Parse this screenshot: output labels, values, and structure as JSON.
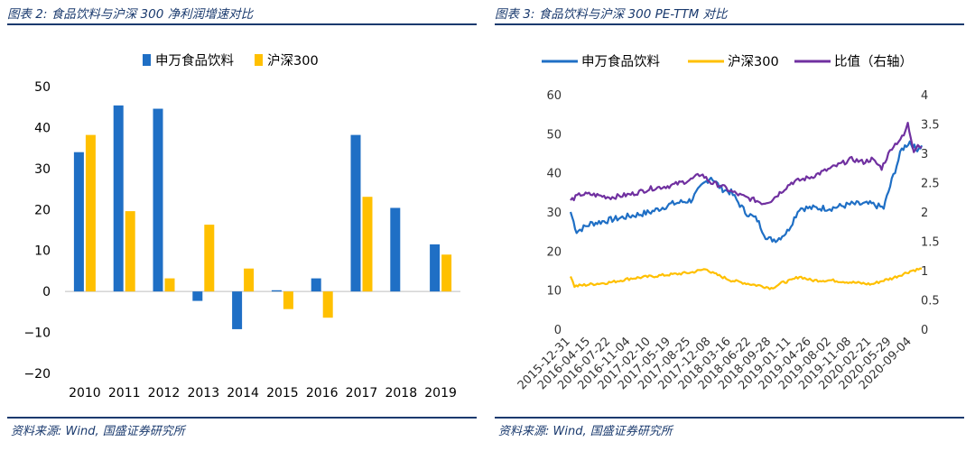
{
  "left": {
    "title": "图表 2:  食品饮料与沪深 300  净利润增速对比",
    "source": "资料来源:  Wind, 国盛证券研究所"
  },
  "right": {
    "title": "图表 3:  食品饮料与沪深 300 PE-TTM 对比",
    "source": "资料来源:  Wind, 国盛证券研究所"
  },
  "chart_data": [
    {
      "type": "bar",
      "categories": [
        "2010",
        "2011",
        "2012",
        "2013",
        "2014",
        "2015",
        "2016",
        "2017",
        "2018",
        "2019"
      ],
      "series": [
        {
          "name": "申万食品饮料",
          "color": "#1f6fc5",
          "values": [
            34,
            45.4,
            44.6,
            -2.3,
            -9.2,
            0.3,
            3.2,
            38.2,
            20.4,
            11.5
          ]
        },
        {
          "name": "沪深300",
          "color": "#ffc000",
          "values": [
            38.2,
            19.6,
            3.2,
            16.3,
            5.6,
            -4.3,
            -6.4,
            23.1,
            null,
            9
          ]
        }
      ],
      "ylim": [
        -20,
        50
      ],
      "yticks": [
        -20,
        -10,
        0,
        10,
        20,
        30,
        40,
        50
      ],
      "legend": "top"
    },
    {
      "type": "line",
      "x_tick_labels": [
        "2015-12-31",
        "2016-04-15",
        "2016-07-22",
        "2016-11-04",
        "2017-02-10",
        "2017-05-19",
        "2017-08-25",
        "2017-12-08",
        "2018-03-16",
        "2018-06-22",
        "2018-09-28",
        "2019-01-11",
        "2019-04-26",
        "2019-08-02",
        "2019-11-08",
        "2020-02-21",
        "2020-05-29",
        "2020-09-04"
      ],
      "ylim_left": [
        0,
        60
      ],
      "yticks_left": [
        0,
        10,
        20,
        30,
        40,
        50,
        60
      ],
      "ylim_right": [
        0,
        4
      ],
      "yticks_right": [
        "0",
        "0.5",
        "1",
        "1.5",
        "2",
        "2.5",
        "3",
        "3.5",
        "4"
      ],
      "legend": "top",
      "series": [
        {
          "name": "申万食品饮料",
          "axis": "left",
          "color": "#1f6fc5",
          "points": [
            [
              0,
              30
            ],
            [
              0.3,
              25
            ],
            [
              1,
              27
            ],
            [
              2,
              28
            ],
            [
              3,
              29
            ],
            [
              4,
              30
            ],
            [
              5,
              32
            ],
            [
              6,
              33
            ],
            [
              6.6,
              37
            ],
            [
              7,
              39
            ],
            [
              7.5,
              36
            ],
            [
              8,
              35
            ],
            [
              8.7,
              30
            ],
            [
              9.3,
              28
            ],
            [
              9.8,
              23
            ],
            [
              10.3,
              23
            ],
            [
              10.8,
              25
            ],
            [
              11.4,
              31
            ],
            [
              12,
              31
            ],
            [
              13,
              31
            ],
            [
              14,
              32
            ],
            [
              15,
              32
            ],
            [
              15.6,
              31
            ],
            [
              16,
              38
            ],
            [
              16.5,
              46
            ],
            [
              16.9,
              48
            ],
            [
              17.2,
              46
            ],
            [
              17.5,
              47
            ]
          ]
        },
        {
          "name": "沪深300",
          "axis": "left",
          "color": "#ffc000",
          "points": [
            [
              0,
              13.5
            ],
            [
              0.2,
              11
            ],
            [
              1,
              11.5
            ],
            [
              2,
              12
            ],
            [
              3,
              13
            ],
            [
              4,
              13.5
            ],
            [
              5,
              14
            ],
            [
              6,
              14.5
            ],
            [
              6.8,
              15.5
            ],
            [
              7,
              14.5
            ],
            [
              8,
              12.5
            ],
            [
              8.5,
              12
            ],
            [
              9,
              11.5
            ],
            [
              9.6,
              11
            ],
            [
              10,
              10.5
            ],
            [
              10.6,
              12
            ],
            [
              11,
              12.5
            ],
            [
              11.4,
              13.5
            ],
            [
              12,
              12.5
            ],
            [
              13,
              12.5
            ],
            [
              14,
              12
            ],
            [
              15,
              11.5
            ],
            [
              15.6,
              12.5
            ],
            [
              16,
              13
            ],
            [
              16.5,
              14
            ],
            [
              17,
              15
            ],
            [
              17.5,
              15.5
            ]
          ]
        },
        {
          "name": "比值（右轴）",
          "axis": "right",
          "color": "#7030a0",
          "points": [
            [
              0,
              2.2
            ],
            [
              0.5,
              2.3
            ],
            [
              1,
              2.3
            ],
            [
              2,
              2.25
            ],
            [
              3,
              2.3
            ],
            [
              4,
              2.4
            ],
            [
              5,
              2.45
            ],
            [
              6,
              2.55
            ],
            [
              6.5,
              2.65
            ],
            [
              7,
              2.5
            ],
            [
              7.5,
              2.45
            ],
            [
              8,
              2.35
            ],
            [
              8.7,
              2.25
            ],
            [
              9.2,
              2.2
            ],
            [
              9.6,
              2.15
            ],
            [
              10,
              2.2
            ],
            [
              10.5,
              2.35
            ],
            [
              11,
              2.5
            ],
            [
              12,
              2.6
            ],
            [
              13,
              2.75
            ],
            [
              14,
              2.9
            ],
            [
              14.6,
              2.85
            ],
            [
              15,
              2.9
            ],
            [
              15.5,
              2.75
            ],
            [
              16,
              3.1
            ],
            [
              16.6,
              3.3
            ],
            [
              16.8,
              3.5
            ],
            [
              17.1,
              3.05
            ],
            [
              17.3,
              3.15
            ],
            [
              17.5,
              3.1
            ]
          ]
        }
      ]
    }
  ]
}
